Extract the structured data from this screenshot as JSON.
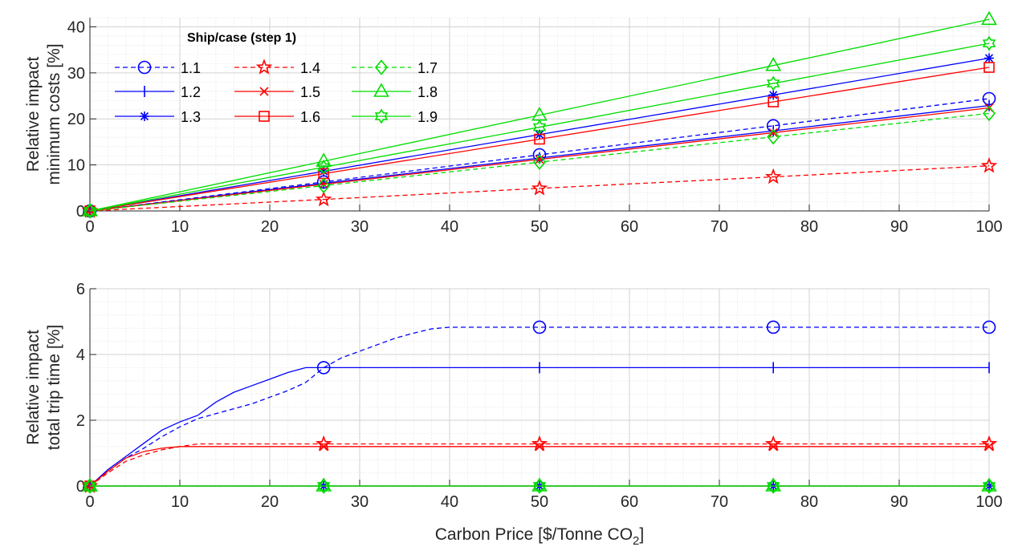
{
  "colors": {
    "blue": "#0000ff",
    "red": "#ff0000",
    "green": "#00dd00"
  },
  "chart_data": [
    {
      "type": "line",
      "ylabel_lines": [
        "Relative impact",
        "minimum costs [%]"
      ],
      "xlabel": "",
      "xlim": [
        0,
        100
      ],
      "ylim": [
        0,
        42
      ],
      "xticks": [
        0,
        10,
        20,
        30,
        40,
        50,
        60,
        70,
        80,
        90,
        100
      ],
      "yticks": [
        0,
        10,
        20,
        30,
        40
      ],
      "grid": true,
      "legend": {
        "title": "Ship/case (step 1)",
        "placement": "top-left",
        "columns": 3
      },
      "series": [
        {
          "name": "1.1",
          "color": "blue",
          "dash": "dashed",
          "marker": "circle",
          "x": [
            0,
            26,
            50,
            76,
            100
          ],
          "y": [
            0,
            6.3,
            12.2,
            18.5,
            24.4
          ]
        },
        {
          "name": "1.2",
          "color": "blue",
          "dash": "solid",
          "marker": "vline",
          "x": [
            0,
            26,
            50,
            76,
            100
          ],
          "y": [
            0,
            6.0,
            11.5,
            17.4,
            22.9
          ]
        },
        {
          "name": "1.3",
          "color": "blue",
          "dash": "solid",
          "marker": "asterisk",
          "x": [
            0,
            26,
            50,
            76,
            100
          ],
          "y": [
            0,
            8.6,
            16.6,
            25.2,
            33.2
          ]
        },
        {
          "name": "1.4",
          "color": "red",
          "dash": "dashed",
          "marker": "star",
          "x": [
            0,
            26,
            50,
            76,
            100
          ],
          "y": [
            0,
            2.5,
            4.9,
            7.4,
            9.8
          ]
        },
        {
          "name": "1.5",
          "color": "red",
          "dash": "solid",
          "marker": "x",
          "x": [
            0,
            26,
            50,
            76,
            100
          ],
          "y": [
            0,
            5.8,
            11.2,
            17.0,
            22.4
          ]
        },
        {
          "name": "1.6",
          "color": "red",
          "dash": "solid",
          "marker": "square",
          "x": [
            0,
            26,
            50,
            76,
            100
          ],
          "y": [
            0,
            8.1,
            15.6,
            23.7,
            31.2
          ]
        },
        {
          "name": "1.7",
          "color": "green",
          "dash": "dashed",
          "marker": "diamond",
          "x": [
            0,
            26,
            50,
            76,
            100
          ],
          "y": [
            0,
            5.5,
            10.6,
            16.1,
            21.2
          ]
        },
        {
          "name": "1.8",
          "color": "green",
          "dash": "solid",
          "marker": "triangle",
          "x": [
            0,
            26,
            50,
            76,
            100
          ],
          "y": [
            0,
            10.8,
            20.8,
            31.6,
            41.6
          ]
        },
        {
          "name": "1.9",
          "color": "green",
          "dash": "solid",
          "marker": "hexagram",
          "x": [
            0,
            26,
            50,
            76,
            100
          ],
          "y": [
            0,
            9.5,
            18.2,
            27.7,
            36.4
          ]
        }
      ]
    },
    {
      "type": "line",
      "ylabel_lines": [
        "Relative impact",
        "total trip time [%]"
      ],
      "xlabel": "Carbon Price [$/Tonne CO",
      "xlabel_sub": "2",
      "xlabel_end": "]",
      "xlim": [
        0,
        100
      ],
      "ylim": [
        0,
        6
      ],
      "xticks": [
        0,
        10,
        20,
        30,
        40,
        50,
        60,
        70,
        80,
        90,
        100
      ],
      "yticks": [
        0,
        2,
        4,
        6
      ],
      "grid": true,
      "series": [
        {
          "ref": "1.1",
          "color": "blue",
          "dash": "dashed",
          "marker": "circle",
          "markers_at": [
            26,
            50,
            76,
            100
          ],
          "x": [
            0,
            2,
            4,
            6,
            8,
            10,
            12,
            14,
            16,
            18,
            20,
            22,
            24,
            26,
            28,
            30,
            32,
            34,
            36,
            38,
            40,
            42,
            50,
            76,
            100
          ],
          "y": [
            0,
            0.45,
            0.85,
            1.15,
            1.5,
            1.8,
            2.05,
            2.2,
            2.35,
            2.5,
            2.7,
            2.9,
            3.15,
            3.6,
            3.9,
            4.1,
            4.3,
            4.5,
            4.65,
            4.78,
            4.83,
            4.83,
            4.83,
            4.83,
            4.83
          ]
        },
        {
          "ref": "1.2",
          "color": "blue",
          "dash": "solid",
          "marker": "vline",
          "markers_at": [
            50,
            76,
            100
          ],
          "x": [
            0,
            2,
            4,
            6,
            8,
            10,
            12,
            14,
            16,
            18,
            20,
            22,
            24,
            26,
            50,
            76,
            100
          ],
          "y": [
            0,
            0.5,
            0.9,
            1.3,
            1.7,
            1.95,
            2.15,
            2.55,
            2.85,
            3.05,
            3.25,
            3.45,
            3.6,
            3.6,
            3.6,
            3.6,
            3.6
          ]
        },
        {
          "ref": "1.3",
          "color": "blue",
          "dash": "solid",
          "marker": "asterisk",
          "markers_at": [
            0,
            26,
            50,
            76,
            100
          ],
          "x": [
            0,
            26,
            50,
            76,
            100
          ],
          "y": [
            0,
            0,
            0,
            0,
            0
          ]
        },
        {
          "ref": "1.4",
          "color": "red",
          "dash": "dashed",
          "marker": "star",
          "markers_at": [
            0,
            26,
            50,
            76,
            100
          ],
          "x": [
            0,
            2,
            4,
            6,
            8,
            10,
            12,
            26,
            50,
            76,
            100
          ],
          "y": [
            0,
            0.4,
            0.75,
            0.95,
            1.1,
            1.2,
            1.28,
            1.28,
            1.28,
            1.28,
            1.28
          ]
        },
        {
          "ref": "1.5",
          "color": "red",
          "dash": "solid",
          "marker": "x",
          "markers_at": [
            0,
            26,
            50,
            76,
            100
          ],
          "x": [
            0,
            2,
            4,
            6,
            8,
            10,
            26,
            50,
            76,
            100
          ],
          "y": [
            0,
            0.45,
            0.85,
            1.05,
            1.15,
            1.2,
            1.2,
            1.2,
            1.2,
            1.2
          ]
        },
        {
          "ref": "1.6",
          "color": "red",
          "dash": "solid",
          "marker": "square",
          "markers_at": [
            0
          ],
          "x": [
            0,
            100
          ],
          "y": [
            0,
            0
          ]
        },
        {
          "ref": "1.7",
          "color": "green",
          "dash": "dashed",
          "marker": "diamond",
          "markers_at": [
            0,
            26,
            50,
            76,
            100
          ],
          "x": [
            0,
            26,
            50,
            76,
            100
          ],
          "y": [
            0,
            0,
            0,
            0,
            0
          ]
        },
        {
          "ref": "1.8",
          "color": "green",
          "dash": "solid",
          "marker": "triangle",
          "markers_at": [
            0,
            26,
            50,
            76,
            100
          ],
          "x": [
            0,
            26,
            50,
            76,
            100
          ],
          "y": [
            0,
            0,
            0,
            0,
            0
          ]
        },
        {
          "ref": "1.9",
          "color": "green",
          "dash": "solid",
          "marker": "hexagram",
          "markers_at": [
            0,
            26,
            50,
            76,
            100
          ],
          "x": [
            0,
            26,
            50,
            76,
            100
          ],
          "y": [
            0,
            0,
            0,
            0,
            0
          ]
        }
      ]
    }
  ]
}
